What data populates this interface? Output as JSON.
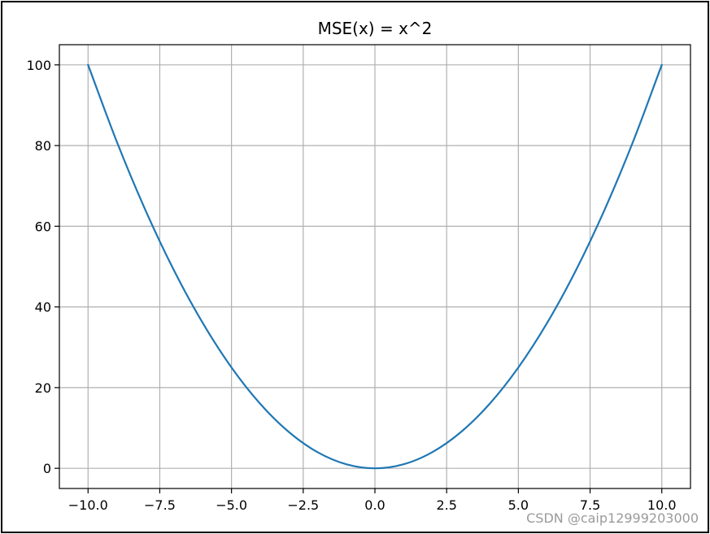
{
  "chart_data": {
    "type": "line",
    "title": "MSE(x) = x^2",
    "xlabel": "",
    "ylabel": "",
    "xlim": [
      -11.0,
      11.0
    ],
    "ylim": [
      -5,
      105
    ],
    "grid": true,
    "xticks": [
      -10.0,
      -7.5,
      -5.0,
      -2.5,
      0.0,
      2.5,
      5.0,
      7.5,
      10.0
    ],
    "xtick_labels": [
      "−10.0",
      "−7.5",
      "−5.0",
      "−2.5",
      "0.0",
      "2.5",
      "5.0",
      "7.5",
      "10.0"
    ],
    "yticks": [
      0,
      20,
      40,
      60,
      80,
      100
    ],
    "ytick_labels": [
      "0",
      "20",
      "40",
      "60",
      "80",
      "100"
    ],
    "series": [
      {
        "color": "#1f77b4",
        "x": [
          -10,
          -9,
          -8,
          -7,
          -6,
          -5,
          -4,
          -3,
          -2,
          -1,
          0,
          1,
          2,
          3,
          4,
          5,
          6,
          7,
          8,
          9,
          10
        ],
        "y": [
          100,
          81,
          64,
          49,
          36,
          25,
          16,
          9,
          4,
          1,
          0,
          1,
          4,
          9,
          16,
          25,
          36,
          49,
          64,
          81,
          100
        ]
      }
    ]
  },
  "watermark": "CSDN @caip12999203000"
}
